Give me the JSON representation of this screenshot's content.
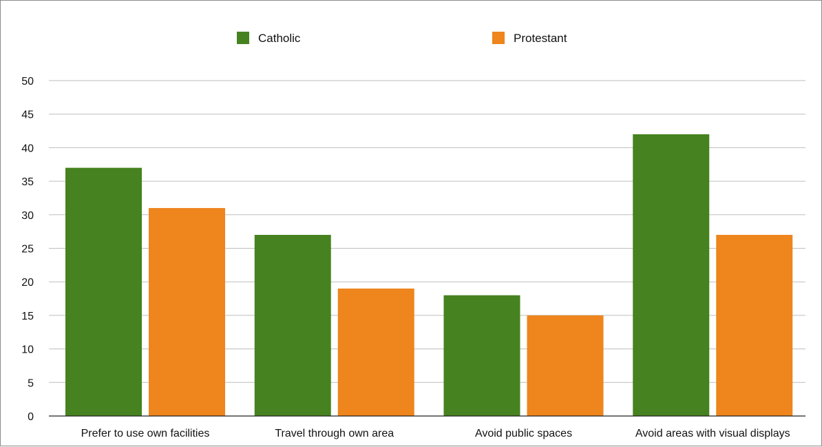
{
  "chart_data": {
    "type": "bar",
    "title": "",
    "xlabel": "",
    "ylabel": "",
    "ylim": [
      0,
      50
    ],
    "yticks": [
      0,
      5,
      10,
      15,
      20,
      25,
      30,
      35,
      40,
      45,
      50
    ],
    "grid": true,
    "legend_position": "top",
    "categories": [
      "Prefer to use own facilities",
      "Travel through own area",
      "Avoid public spaces",
      "Avoid areas with visual displays"
    ],
    "series": [
      {
        "name": "Catholic",
        "color": "#46821f",
        "values": [
          37,
          27,
          18,
          42
        ]
      },
      {
        "name": "Protestant",
        "color": "#ee851d",
        "values": [
          31,
          19,
          15,
          27
        ]
      }
    ]
  }
}
